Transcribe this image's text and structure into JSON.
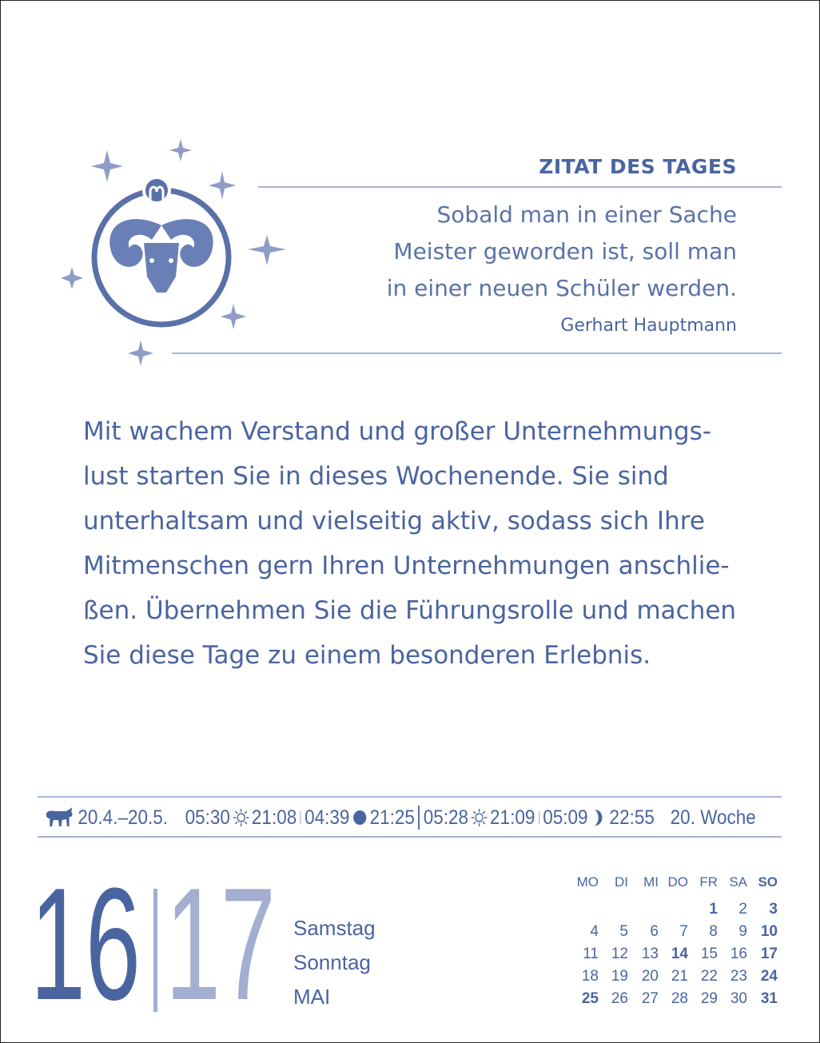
{
  "quote": {
    "title": "ZITAT DES TAGES",
    "lines": [
      "Sobald man in einer Sache",
      "Meister geworden ist, soll man",
      "in einer neuen Schüler werden."
    ],
    "author": "Gerhart Hauptmann"
  },
  "horoscope": {
    "sign_icon": "aries-ram-icon",
    "lines": [
      "Mit wachem Verstand und großer Unternehmungs-",
      "lust starten Sie in dieses Wochenende. Sie sind",
      "unterhaltsam und vielseitig aktiv, sodass sich Ihre",
      "Mitmenschen gern Ihren Unternehmungen anschlie-",
      "ßen. Übernehmen Sie die Führungsrolle und machen",
      "Sie diese Tage zu einem besonderen Erlebnis."
    ]
  },
  "infobar": {
    "zodiac_icon": "taurus-bull-icon",
    "zodiac_range": "20.4.–20.5.",
    "sat": {
      "sunrise": "05:30",
      "sunset": "21:08",
      "moonrise": "04:39",
      "moonset": "21:25",
      "moon_icon": "full-moon-icon"
    },
    "sun": {
      "sunrise": "05:28",
      "sunset": "21:09",
      "moonrise": "05:09",
      "moonset": "22:55",
      "moon_icon": "waning-moon-icon"
    },
    "week": "20. Woche"
  },
  "date": {
    "day1": "16",
    "day2": "17",
    "weekday1": "Samstag",
    "weekday2": "Sonntag",
    "month": "MAI"
  },
  "mini_calendar": {
    "headers": [
      "MO",
      "DI",
      "MI",
      "DO",
      "FR",
      "SA",
      "SO"
    ],
    "weeks": [
      [
        "",
        "",
        "",
        "",
        "1",
        "2",
        "3"
      ],
      [
        "4",
        "5",
        "6",
        "7",
        "8",
        "9",
        "10"
      ],
      [
        "11",
        "12",
        "13",
        "14",
        "15",
        "16",
        "17"
      ],
      [
        "18",
        "19",
        "20",
        "21",
        "22",
        "23",
        "24"
      ],
      [
        "25",
        "26",
        "27",
        "28",
        "29",
        "30",
        "31"
      ]
    ],
    "bold_days": [
      "1",
      "3",
      "10",
      "14",
      "17",
      "24",
      "25",
      "31"
    ]
  },
  "colors": {
    "primary": "#4a64a0",
    "light": "#a3aed0",
    "rule": "#a8b3d3"
  }
}
